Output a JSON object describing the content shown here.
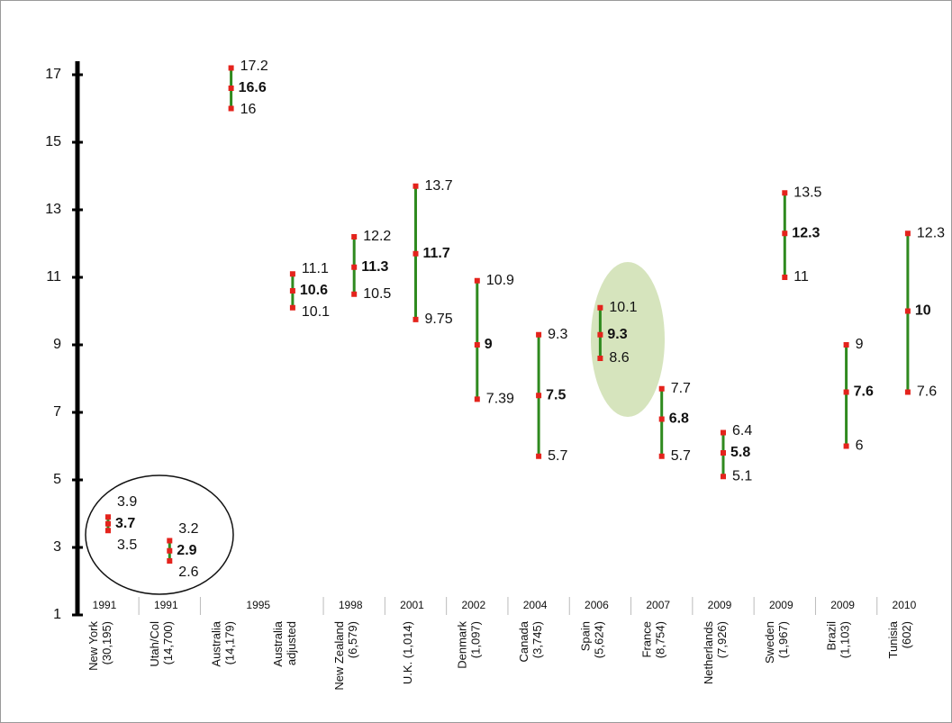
{
  "chart_data": {
    "type": "range",
    "categories": [
      [
        "New York",
        "(30,195)"
      ],
      [
        "Utah/Col",
        "(14,700)"
      ],
      [
        "Australia",
        "(14,179)"
      ],
      [
        "Australia",
        "adjusted"
      ],
      [
        "New Zealand",
        "(6,579)"
      ],
      [
        "U.K. (1,014)"
      ],
      [
        "Denmark",
        "(1,097)"
      ],
      [
        "Canada",
        "(3,745)"
      ],
      [
        "Spain",
        "(5,624)"
      ],
      [
        "France",
        "(8,754)"
      ],
      [
        "Netherlands",
        "(7,926)"
      ],
      [
        "Sweden",
        "(1,967)"
      ],
      [
        "Brazil",
        "(1,103)"
      ],
      [
        "Tunisia",
        "(602)"
      ]
    ],
    "years": [
      "1991",
      "1991",
      "1995",
      null,
      "1998",
      "2001",
      "2002",
      "2004",
      "2006",
      "2007",
      "2009",
      "2009",
      "2009",
      "2010"
    ],
    "high": [
      3.9,
      3.2,
      17.2,
      11.1,
      12.2,
      13.7,
      10.9,
      9.3,
      10.1,
      7.7,
      6.4,
      13.5,
      9,
      12.3
    ],
    "mid": [
      3.7,
      2.9,
      16.6,
      10.6,
      11.3,
      11.7,
      9,
      7.5,
      9.3,
      6.8,
      5.8,
      12.3,
      7.6,
      10
    ],
    "low": [
      3.5,
      2.6,
      16,
      10.1,
      10.5,
      9.75,
      7.39,
      5.7,
      8.6,
      5.7,
      5.1,
      11,
      6,
      7.6
    ],
    "ylim": [
      1,
      17.4
    ],
    "yticks": [
      1,
      3,
      5,
      7,
      9,
      11,
      13,
      15,
      17
    ],
    "line_color": "#2f8a1f",
    "point_color": "#e4231c",
    "mid_label_color": "#2f8a1f"
  }
}
